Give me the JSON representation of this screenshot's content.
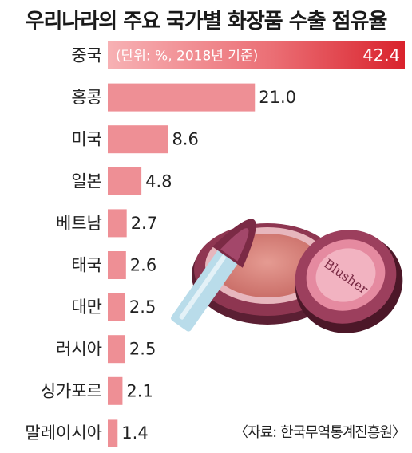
{
  "title": "우리나라의 주요 국가별 화장품 수출 점유율",
  "unit_note": "(단위: %, 2018년 기준)",
  "source": "〈자료: 한국무역통계진흥원〉",
  "illustration": {
    "label": "Blusher"
  },
  "colors": {
    "bar": "#ee8f95",
    "bar_top": "#e0262f",
    "bar_top_light": "#f7b1b4"
  },
  "chart_data": {
    "type": "bar",
    "orientation": "horizontal",
    "title": "우리나라의 주요 국가별 화장품 수출 점유율",
    "subtitle": "(단위: %, 2018년 기준)",
    "categories": [
      "중국",
      "홍콩",
      "미국",
      "일본",
      "베트남",
      "태국",
      "대만",
      "러시아",
      "싱가포르",
      "말레이시아"
    ],
    "values": [
      42.4,
      21.0,
      8.6,
      4.8,
      2.7,
      2.6,
      2.5,
      2.5,
      2.1,
      1.4
    ],
    "value_labels": [
      "42.4",
      "21.0",
      "8.6",
      "4.8",
      "2.7",
      "2.6",
      "2.5",
      "2.5",
      "2.1",
      "1.4"
    ],
    "grid": false,
    "legend": "none"
  }
}
